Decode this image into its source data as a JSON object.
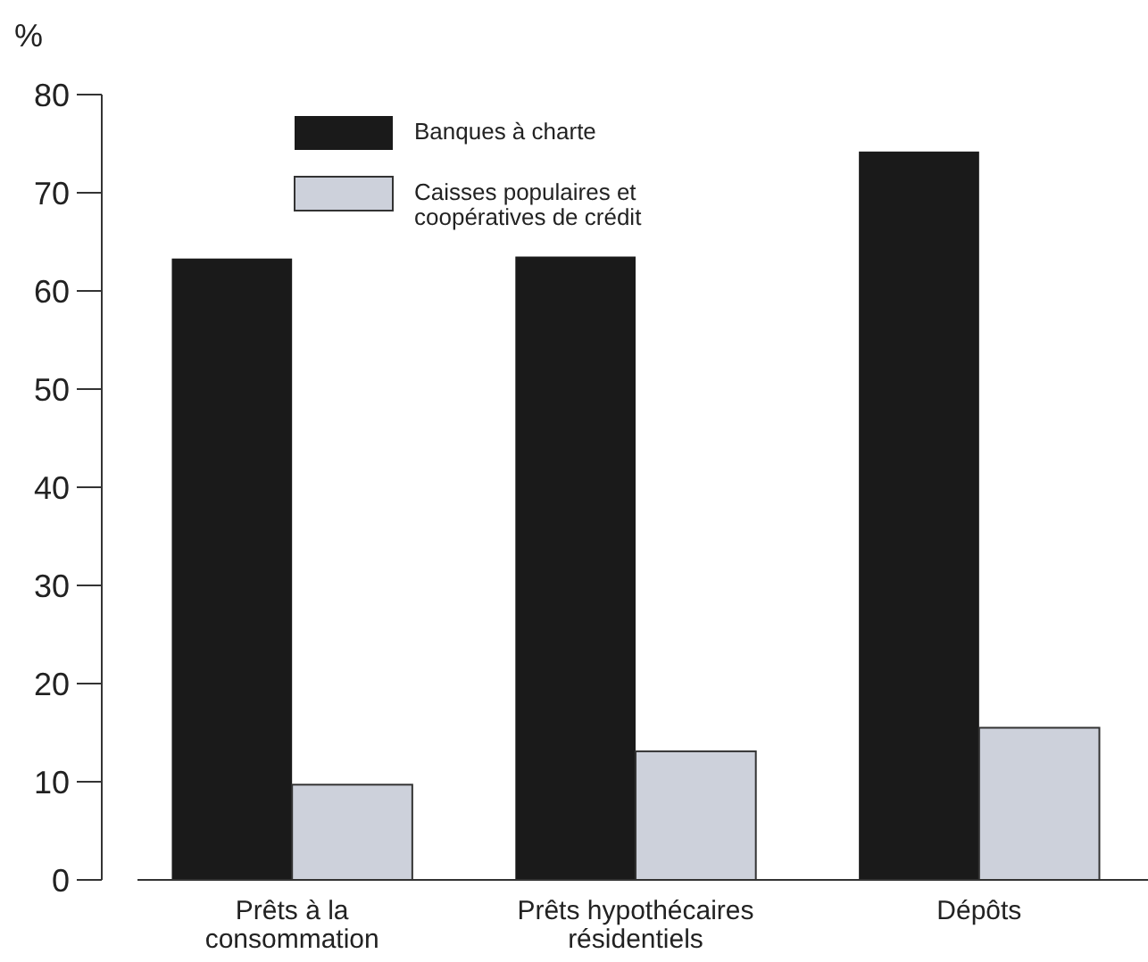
{
  "chart_data": {
    "type": "bar",
    "ylabel": "%",
    "categories": [
      "Prêts à la consommation",
      "Prêts hypothécaires résidentiels",
      "Dépôts"
    ],
    "series": [
      {
        "name": "Banques à charte",
        "color": "#1a1a1a",
        "values": [
          63.3,
          63.5,
          74.2
        ]
      },
      {
        "name": "Caisses populaires et coopératives de crédit",
        "color": "#cdd1db",
        "values": [
          9.7,
          13.1,
          15.5
        ]
      }
    ],
    "ylim": [
      0,
      80
    ],
    "yticks": [
      0,
      10,
      20,
      30,
      40,
      50,
      60,
      70,
      80
    ],
    "grid": false,
    "legend": "top"
  }
}
